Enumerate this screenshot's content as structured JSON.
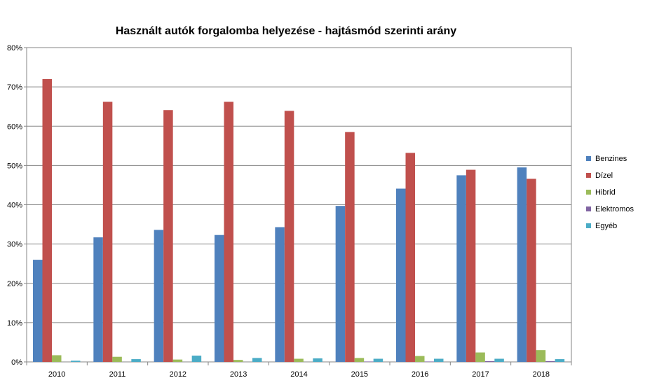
{
  "chart_data": {
    "type": "bar",
    "title": "Használt autók forgalomba helyezése - hajtásmód szerinti arány",
    "categories": [
      "2010",
      "2011",
      "2012",
      "2013",
      "2014",
      "2015",
      "2016",
      "2017",
      "2018"
    ],
    "y_ticks": [
      "0%",
      "10%",
      "20%",
      "30%",
      "40%",
      "50%",
      "60%",
      "70%",
      "80%"
    ],
    "ylim": [
      0,
      80
    ],
    "grid": true,
    "legend_position": "right",
    "series": [
      {
        "name": "Benzines",
        "color": "#4F81BD",
        "values": [
          26,
          31.7,
          33.6,
          32.3,
          34.3,
          39.7,
          44.1,
          47.5,
          49.5
        ]
      },
      {
        "name": "Dízel",
        "color": "#C0504D",
        "values": [
          72,
          66.2,
          64.1,
          66.2,
          63.9,
          58.5,
          53.2,
          48.9,
          46.6
        ]
      },
      {
        "name": "Hibrid",
        "color": "#9BBB59",
        "values": [
          1.7,
          1.3,
          0.6,
          0.5,
          0.8,
          1.0,
          1.5,
          2.4,
          3.0
        ]
      },
      {
        "name": "Elektromos",
        "color": "#8064A2",
        "values": [
          0,
          0,
          0,
          0,
          0,
          0.1,
          0.1,
          0.2,
          0.2
        ]
      },
      {
        "name": "Egyéb",
        "color": "#4BACC6",
        "values": [
          0.3,
          0.7,
          1.6,
          1.0,
          0.9,
          0.8,
          0.8,
          0.8,
          0.7
        ]
      }
    ]
  }
}
